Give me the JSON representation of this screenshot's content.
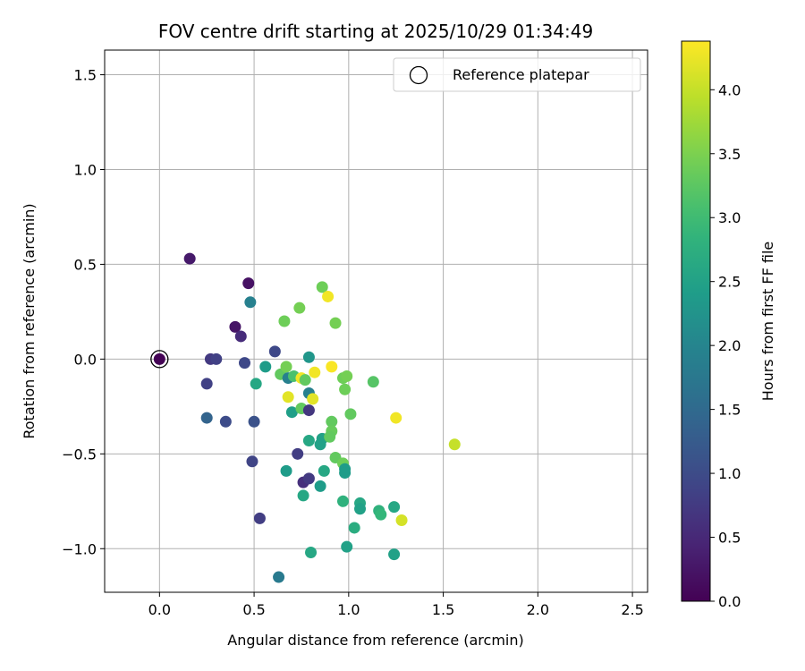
{
  "chart_data": {
    "type": "scatter",
    "title": "FOV centre drift starting at 2025/10/29 01:34:49",
    "xlabel": "Angular distance from reference (arcmin)",
    "ylabel": "Rotation from reference (arcmin)",
    "xlim": [
      -0.29,
      2.58
    ],
    "ylim": [
      -1.23,
      1.63
    ],
    "xticks": [
      0.0,
      0.5,
      1.0,
      1.5,
      2.0,
      2.5
    ],
    "xtick_labels": [
      "0.0",
      "0.5",
      "1.0",
      "1.5",
      "2.0",
      "2.5"
    ],
    "yticks": [
      -1.0,
      -0.5,
      0.0,
      0.5,
      1.0,
      1.5
    ],
    "ytick_labels": [
      "−1.0",
      "−0.5",
      "0.0",
      "0.5",
      "1.0",
      "1.5"
    ],
    "grid": true,
    "legend": {
      "label": "Reference platepar",
      "position": "top-right"
    },
    "reference": {
      "x": 0.0,
      "y": 0.0,
      "hours": 0.0
    },
    "colorbar": {
      "label": "Hours from first FF file",
      "range": [
        0.0,
        4.38
      ],
      "ticks": [
        0.0,
        0.5,
        1.0,
        1.5,
        2.0,
        2.5,
        3.0,
        3.5,
        4.0
      ],
      "tick_labels": [
        "0.0",
        "0.5",
        "1.0",
        "1.5",
        "2.0",
        "2.5",
        "3.0",
        "3.5",
        "4.0"
      ],
      "colormap": "viridis"
    },
    "points": [
      {
        "x": 0.0,
        "y": 0.0,
        "hours": 0.02
      },
      {
        "x": 0.16,
        "y": 0.53,
        "hours": 0.3
      },
      {
        "x": 0.47,
        "y": 0.4,
        "hours": 0.2
      },
      {
        "x": 0.48,
        "y": 0.3,
        "hours": 1.9
      },
      {
        "x": 0.4,
        "y": 0.17,
        "hours": 0.25
      },
      {
        "x": 0.43,
        "y": 0.12,
        "hours": 0.55
      },
      {
        "x": 0.27,
        "y": 0.0,
        "hours": 0.75
      },
      {
        "x": 0.3,
        "y": 0.0,
        "hours": 0.85
      },
      {
        "x": 0.45,
        "y": -0.02,
        "hours": 0.95
      },
      {
        "x": 0.25,
        "y": -0.13,
        "hours": 0.85
      },
      {
        "x": 0.25,
        "y": -0.31,
        "hours": 1.4
      },
      {
        "x": 0.35,
        "y": -0.33,
        "hours": 1.0
      },
      {
        "x": 0.5,
        "y": -0.33,
        "hours": 1.1
      },
      {
        "x": 0.49,
        "y": -0.54,
        "hours": 0.9
      },
      {
        "x": 0.53,
        "y": -0.84,
        "hours": 0.8
      },
      {
        "x": 0.51,
        "y": -0.13,
        "hours": 2.6
      },
      {
        "x": 0.56,
        "y": -0.04,
        "hours": 2.4
      },
      {
        "x": 0.61,
        "y": 0.04,
        "hours": 0.95
      },
      {
        "x": 0.64,
        "y": -0.08,
        "hours": 3.3
      },
      {
        "x": 0.66,
        "y": 0.2,
        "hours": 3.4
      },
      {
        "x": 0.67,
        "y": -0.04,
        "hours": 3.45
      },
      {
        "x": 0.68,
        "y": -0.1,
        "hours": 1.9
      },
      {
        "x": 0.71,
        "y": -0.09,
        "hours": 3.1
      },
      {
        "x": 0.74,
        "y": 0.27,
        "hours": 3.45
      },
      {
        "x": 0.75,
        "y": -0.1,
        "hours": 4.3
      },
      {
        "x": 0.79,
        "y": 0.01,
        "hours": 2.3
      },
      {
        "x": 0.68,
        "y": -0.2,
        "hours": 4.2
      },
      {
        "x": 0.7,
        "y": -0.28,
        "hours": 2.45
      },
      {
        "x": 0.75,
        "y": -0.26,
        "hours": 3.3
      },
      {
        "x": 0.79,
        "y": -0.27,
        "hours": 0.7
      },
      {
        "x": 0.79,
        "y": -0.18,
        "hours": 1.9
      },
      {
        "x": 0.81,
        "y": -0.21,
        "hours": 4.2
      },
      {
        "x": 0.77,
        "y": -0.11,
        "hours": 3.3
      },
      {
        "x": 0.82,
        "y": -0.07,
        "hours": 4.3
      },
      {
        "x": 0.86,
        "y": 0.38,
        "hours": 3.4
      },
      {
        "x": 0.89,
        "y": 0.33,
        "hours": 4.3
      },
      {
        "x": 0.93,
        "y": 0.19,
        "hours": 3.45
      },
      {
        "x": 0.91,
        "y": -0.04,
        "hours": 4.35
      },
      {
        "x": 0.97,
        "y": -0.1,
        "hours": 3.4
      },
      {
        "x": 0.99,
        "y": -0.09,
        "hours": 3.45
      },
      {
        "x": 0.98,
        "y": -0.16,
        "hours": 3.4
      },
      {
        "x": 1.01,
        "y": -0.29,
        "hours": 3.3
      },
      {
        "x": 1.13,
        "y": -0.12,
        "hours": 3.2
      },
      {
        "x": 0.73,
        "y": -0.5,
        "hours": 0.8
      },
      {
        "x": 0.79,
        "y": -0.43,
        "hours": 2.6
      },
      {
        "x": 0.67,
        "y": -0.59,
        "hours": 2.4
      },
      {
        "x": 0.76,
        "y": -0.65,
        "hours": 0.6
      },
      {
        "x": 0.79,
        "y": -0.63,
        "hours": 0.75
      },
      {
        "x": 0.76,
        "y": -0.72,
        "hours": 2.6
      },
      {
        "x": 0.85,
        "y": -0.67,
        "hours": 2.4
      },
      {
        "x": 0.86,
        "y": -0.42,
        "hours": 2.5
      },
      {
        "x": 0.85,
        "y": -0.45,
        "hours": 2.5
      },
      {
        "x": 0.87,
        "y": -0.59,
        "hours": 2.6
      },
      {
        "x": 0.91,
        "y": -0.33,
        "hours": 3.3
      },
      {
        "x": 0.91,
        "y": -0.38,
        "hours": 3.35
      },
      {
        "x": 0.9,
        "y": -0.41,
        "hours": 3.3
      },
      {
        "x": 0.93,
        "y": -0.52,
        "hours": 3.3
      },
      {
        "x": 0.97,
        "y": -0.55,
        "hours": 3.4
      },
      {
        "x": 0.98,
        "y": -0.58,
        "hours": 2.4
      },
      {
        "x": 0.98,
        "y": -0.6,
        "hours": 2.4
      },
      {
        "x": 0.97,
        "y": -0.75,
        "hours": 2.8
      },
      {
        "x": 1.06,
        "y": -0.76,
        "hours": 2.6
      },
      {
        "x": 1.06,
        "y": -0.79,
        "hours": 2.5
      },
      {
        "x": 1.16,
        "y": -0.8,
        "hours": 2.8
      },
      {
        "x": 1.17,
        "y": -0.82,
        "hours": 2.9
      },
      {
        "x": 1.24,
        "y": -0.78,
        "hours": 2.6
      },
      {
        "x": 1.03,
        "y": -0.89,
        "hours": 2.7
      },
      {
        "x": 0.99,
        "y": -0.99,
        "hours": 2.5
      },
      {
        "x": 0.8,
        "y": -1.02,
        "hours": 2.6
      },
      {
        "x": 0.63,
        "y": -1.15,
        "hours": 1.8
      },
      {
        "x": 1.24,
        "y": -1.03,
        "hours": 2.5
      },
      {
        "x": 1.25,
        "y": -0.31,
        "hours": 4.3
      },
      {
        "x": 1.28,
        "y": -0.85,
        "hours": 4.1
      },
      {
        "x": 1.56,
        "y": -0.45,
        "hours": 4.0
      }
    ]
  }
}
